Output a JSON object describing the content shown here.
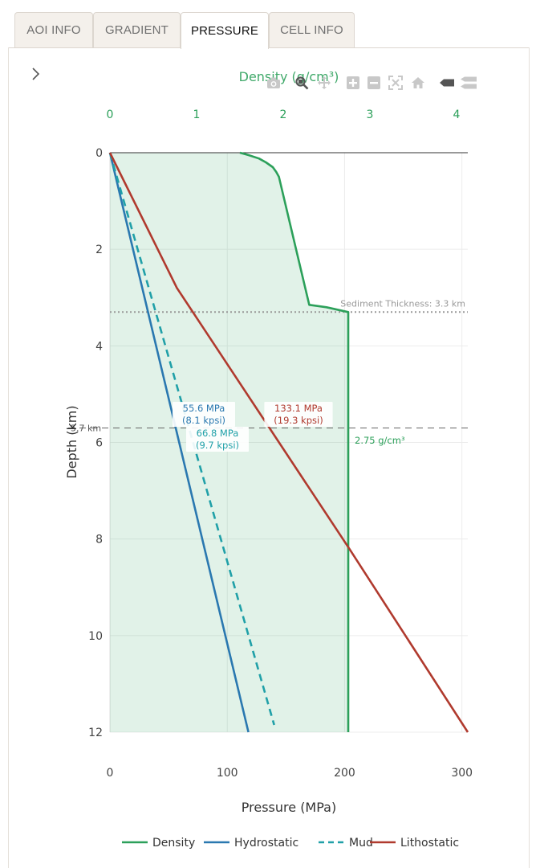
{
  "tabs": [
    {
      "label": "AOI INFO",
      "active": false
    },
    {
      "label": "GRADIENT",
      "active": false
    },
    {
      "label": "PRESSURE",
      "active": true
    },
    {
      "label": "CELL INFO",
      "active": false
    }
  ],
  "modebar": [
    "camera-icon",
    "zoom-icon",
    "pan-icon",
    "zoom-in-icon",
    "zoom-out-icon",
    "autoscale-icon",
    "reset-axes-icon",
    "spike-lines-icon",
    "compare-hover-icon"
  ],
  "chart_data": {
    "type": "line",
    "x2label": "Density (g/cm³)",
    "xlabel": "Pressure (MPa)",
    "ylabel": "Depth (km)",
    "xlim": [
      0,
      305
    ],
    "x2lim": [
      0,
      4.13
    ],
    "ylim": [
      12,
      0
    ],
    "xticks": [
      0,
      100,
      200,
      300
    ],
    "x2ticks": [
      0,
      1,
      2,
      3,
      4
    ],
    "yticks": [
      0,
      2,
      4,
      6,
      8,
      10,
      12
    ],
    "grid": true,
    "legend_position": "bottom",
    "series": [
      {
        "name": "Density",
        "axis": "x2",
        "color": "#2ca05a",
        "dash": "solid",
        "points": [
          [
            1.5,
            0
          ],
          [
            1.6,
            0.05
          ],
          [
            1.72,
            0.12
          ],
          [
            1.8,
            0.2
          ],
          [
            1.88,
            0.3
          ],
          [
            1.92,
            0.4
          ],
          [
            1.95,
            0.5
          ],
          [
            2.3,
            3.15
          ],
          [
            2.5,
            3.2
          ],
          [
            2.75,
            3.3
          ],
          [
            2.75,
            12
          ]
        ]
      },
      {
        "name": "Hydrostatic",
        "axis": "x",
        "color": "#2a78b0",
        "dash": "solid",
        "points": [
          [
            0,
            0
          ],
          [
            118,
            12
          ]
        ]
      },
      {
        "name": "Mud",
        "axis": "x",
        "color": "#20a0a8",
        "dash": "dashed",
        "points": [
          [
            0,
            0
          ],
          [
            140,
            11.85
          ]
        ]
      },
      {
        "name": "Lithostatic",
        "axis": "x",
        "color": "#b03a2e",
        "dash": "solid",
        "points": [
          [
            0,
            0
          ],
          [
            57,
            2.8
          ],
          [
            204,
            8.2
          ],
          [
            305,
            12
          ]
        ]
      }
    ],
    "reference_lines": [
      {
        "depth": 0,
        "style": "solid",
        "label": ""
      },
      {
        "depth": 3.3,
        "style": "dotted",
        "label": "Sediment Thickness: 3.3 km"
      },
      {
        "depth": 5.7,
        "style": "dashed",
        "label": "5.7 km"
      }
    ],
    "annotations": [
      {
        "line1": "55.6 MPa",
        "line2": "(8.1 kpsi)",
        "x": 55.6,
        "y": 5.7,
        "color": "#2a78b0"
      },
      {
        "line1": "66.8 MPa",
        "line2": "(9.7 kpsi)",
        "x": 66.8,
        "y": 5.7,
        "color": "#20a0a8"
      },
      {
        "line1": "133.1 MPa",
        "line2": "(19.3 kpsi)",
        "x": 133.1,
        "y": 5.7,
        "color": "#b03a2e"
      },
      {
        "line1": "2.75 g/cm³",
        "line2": "",
        "x2": 2.75,
        "y": 6,
        "color": "#2ca05a"
      }
    ]
  }
}
